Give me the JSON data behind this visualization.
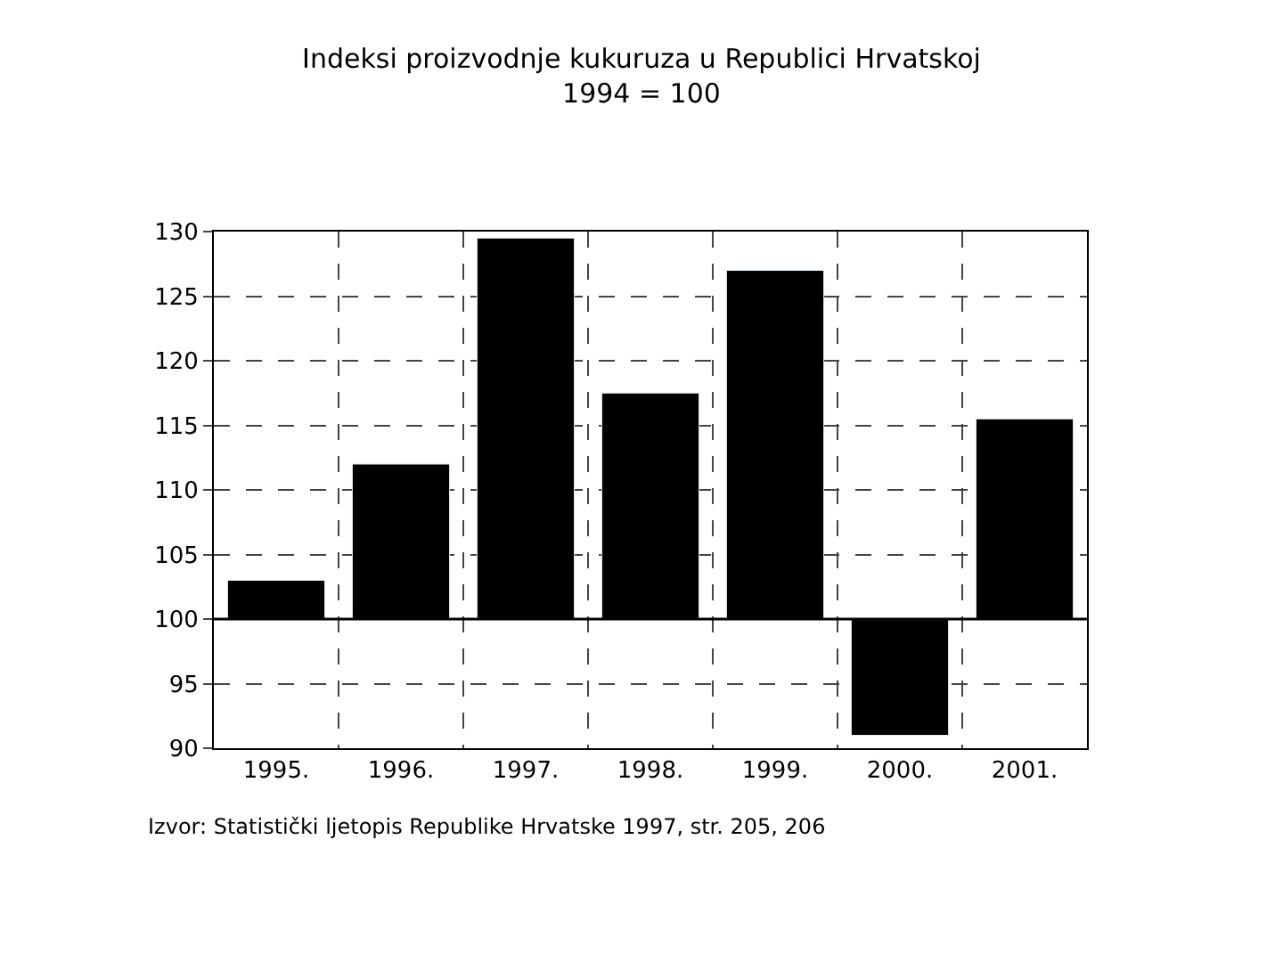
{
  "chart_data": {
    "type": "bar",
    "title": "Indeksi proizvodnje kukuruza u Republici Hrvatskoj",
    "subtitle": "1994 = 100",
    "categories": [
      "1995.",
      "1996.",
      "1997.",
      "1998.",
      "1999.",
      "2000.",
      "2001."
    ],
    "base": [
      100,
      100,
      100,
      100,
      100,
      100,
      100
    ],
    "values": [
      3,
      12,
      29.5,
      17.5,
      27,
      -9,
      15.5
    ],
    "color": "#000000",
    "ylim": [
      90,
      130
    ],
    "yticks": [
      90,
      95,
      100,
      105,
      110,
      115,
      120,
      125,
      130
    ],
    "grid": true,
    "line_style": "dashed",
    "ref_lines": [
      {
        "axis": "y",
        "value": 100,
        "color": "#000000"
      }
    ],
    "annotations": [
      "Izvor: Statistički ljetopis Republike Hrvatske 1997, str. 205, 206"
    ]
  }
}
